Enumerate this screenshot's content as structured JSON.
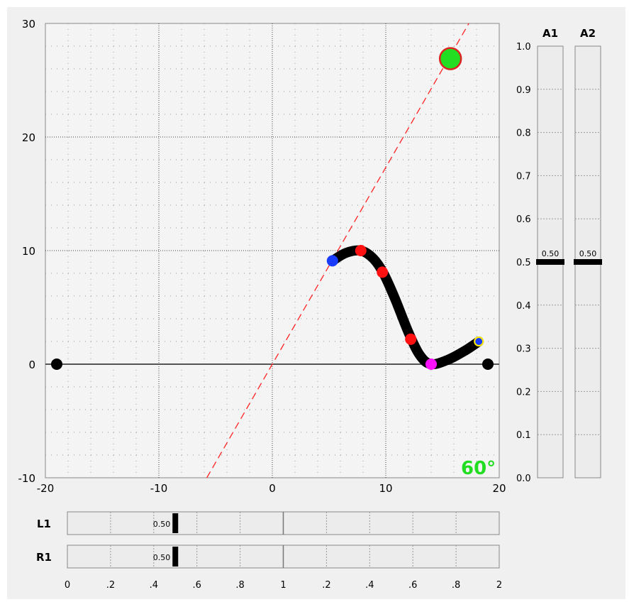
{
  "plot": {
    "x_range": [
      -20,
      20
    ],
    "y_range": [
      -10,
      30
    ],
    "x_ticks": [
      "-20",
      "-10",
      "0",
      "10",
      "20"
    ],
    "y_ticks": [
      "-10",
      "0",
      "10",
      "20",
      "30"
    ],
    "angle_label": "60°",
    "angle_color": "#22dd22",
    "line_slope_deg": 60,
    "curve": [
      [
        5.3,
        9.1
      ],
      [
        6.5,
        9.8
      ],
      [
        7.8,
        10.0
      ],
      [
        8.9,
        9.3
      ],
      [
        9.8,
        8.0
      ],
      [
        10.8,
        5.8
      ],
      [
        12.0,
        2.8
      ],
      [
        13.0,
        0.8
      ],
      [
        14.0,
        0.0
      ],
      [
        15.5,
        0.4
      ],
      [
        17.0,
        1.2
      ],
      [
        18.2,
        2.0
      ]
    ],
    "endpoint_left": [
      -19,
      0
    ],
    "endpoint_right": [
      19,
      0
    ],
    "point_blue_start": [
      5.3,
      9.1
    ],
    "points_red": [
      [
        7.8,
        10.0
      ],
      [
        9.7,
        8.1
      ],
      [
        12.2,
        2.2
      ]
    ],
    "point_magenta": [
      14.0,
      0.0
    ],
    "point_end": [
      18.2,
      2.0
    ],
    "target": [
      15.7,
      26.9
    ]
  },
  "vertical_sliders": [
    {
      "label": "A1",
      "value": 0.5,
      "value_label": "0.50"
    },
    {
      "label": "A2",
      "value": 0.5,
      "value_label": "0.50"
    }
  ],
  "vertical_axis_ticks": [
    "1.0",
    "0.9",
    "0.8",
    "0.7",
    "0.6",
    "0.5",
    "0.4",
    "0.3",
    "0.2",
    "0.1",
    "0.0"
  ],
  "horizontal_sliders": [
    {
      "label": "L1",
      "value": 0.5,
      "value_label": "0.50"
    },
    {
      "label": "R1",
      "value": 0.5,
      "value_label": "0.50"
    }
  ],
  "horizontal_axis_ticks": [
    "0",
    ".2",
    ".4",
    ".6",
    ".8",
    "1",
    ".2",
    ".4",
    ".6",
    ".8",
    "2"
  ],
  "colors": {
    "curve": "#000000",
    "dashed_line": "#ff2222",
    "target_fill": "#22dd22",
    "target_stroke": "#dd2222",
    "blue": "#1a3cff",
    "red": "#ff1111",
    "magenta": "#ff11ff",
    "end_ring": "#ffee00"
  }
}
